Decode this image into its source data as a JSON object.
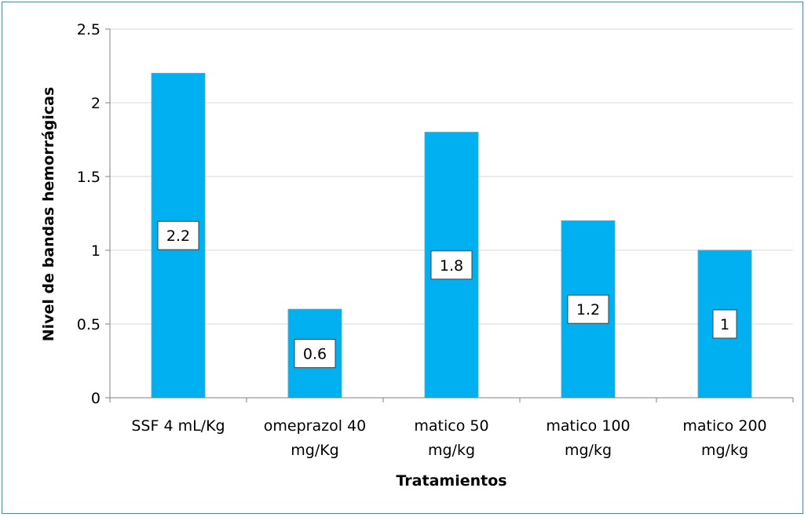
{
  "chart_data": {
    "type": "bar",
    "categories": [
      [
        "SSF 4 mL/Kg"
      ],
      [
        "omeprazol 40",
        "mg/Kg"
      ],
      [
        "matico 50",
        "mg/kg"
      ],
      [
        "matico 100",
        "mg/kg"
      ],
      [
        "matico 200",
        "mg/kg"
      ]
    ],
    "values": [
      2.2,
      0.6,
      1.8,
      1.2,
      1
    ],
    "data_labels": [
      "2.2",
      "0.6",
      "1.8",
      "1.2",
      "1"
    ],
    "xlabel": "Tratamientos",
    "ylabel": "Nivel de bandas hemorrágicas",
    "ylim": [
      0,
      2.5
    ],
    "yticks": [
      0,
      0.5,
      1,
      1.5,
      2,
      2.5
    ],
    "ytick_labels": [
      "0",
      "0.5",
      "1",
      "1.5",
      "2",
      "2.5"
    ],
    "grid": true,
    "legend": "none",
    "colors": {
      "bar": "#00b0f0",
      "bar_edge": "#4bacc6",
      "grid": "#d9d9d9",
      "frame": "#4f81bd"
    }
  }
}
